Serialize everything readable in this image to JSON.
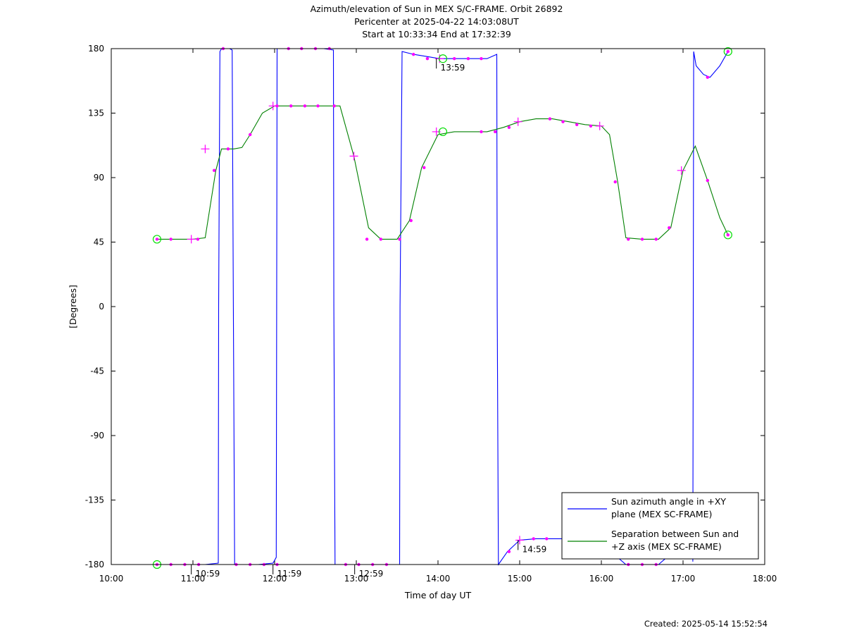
{
  "header": {
    "title": "Azimuth/elevation of Sun in MEX S/C-FRAME.  Orbit 26892",
    "pericenter": "Pericenter at 2025-04-22 14:03:08UT",
    "range": "Start at 10:33:34 End at 17:32:39"
  },
  "footer": {
    "created": "Created: 2025-05-14 15:52:54"
  },
  "chart_data": {
    "type": "line",
    "xlabel": "Time of day UT",
    "ylabel": "[Degrees]",
    "xlim": [
      10.0,
      18.0
    ],
    "ylim": [
      -180,
      180
    ],
    "x_ticks": [
      {
        "v": 10,
        "label": "10:00"
      },
      {
        "v": 11,
        "label": "11:00"
      },
      {
        "v": 12,
        "label": "12:00"
      },
      {
        "v": 13,
        "label": "13:00"
      },
      {
        "v": 14,
        "label": "14:00"
      },
      {
        "v": 15,
        "label": "15:00"
      },
      {
        "v": 16,
        "label": "16:00"
      },
      {
        "v": 17,
        "label": "17:00"
      },
      {
        "v": 18,
        "label": "18:00"
      }
    ],
    "y_ticks": [
      {
        "v": 180,
        "label": "180"
      },
      {
        "v": 135,
        "label": "135"
      },
      {
        "v": 90,
        "label": "90"
      },
      {
        "v": 45,
        "label": "45"
      },
      {
        "v": 0,
        "label": "0"
      },
      {
        "v": -45,
        "label": "-45"
      },
      {
        "v": -90,
        "label": "-90"
      },
      {
        "v": -135,
        "label": "-135"
      },
      {
        "v": -180,
        "label": "-180"
      }
    ],
    "legend_position": "bottom-right",
    "series": [
      {
        "name": "Sun azimuth angle in +XY plane (MEX SC-FRAME)",
        "legend_lines": [
          "Sun azimuth angle in +XY",
          "plane (MEX SC-FRAME)"
        ],
        "color": "#0000ff",
        "x": [
          10.56,
          10.7,
          10.98,
          11.15,
          11.31,
          11.315,
          11.33,
          11.35,
          11.45,
          11.48,
          11.495,
          11.51,
          11.6,
          11.8,
          11.98,
          12.02,
          12.025,
          12.03,
          12.2,
          12.4,
          12.6,
          12.72,
          12.725,
          12.74,
          12.9,
          13.2,
          13.47,
          13.53,
          13.535,
          13.56,
          13.7,
          14.02,
          14.2,
          14.4,
          14.6,
          14.72,
          14.725,
          14.74,
          14.85,
          15.0,
          15.2,
          15.6,
          15.68
        ],
        "y": [
          -180,
          -180,
          -180,
          -180,
          -179,
          0,
          178,
          180,
          180,
          179,
          0,
          -180,
          -180,
          -180,
          -179,
          -175,
          0,
          180,
          180,
          180,
          180,
          179,
          0,
          -180,
          -180,
          -180,
          -180,
          -180,
          0,
          178,
          176,
          173,
          173,
          173,
          173,
          176,
          0,
          -180,
          -171,
          -163,
          -162,
          -162,
          -162
        ]
      },
      {
        "name": "Sun azimuth angle in +XY plane (MEX SC-FRAME)",
        "color": "#0000ff",
        "x": [
          16.22,
          16.3,
          16.5,
          16.7,
          16.78
        ],
        "y": [
          -176,
          -180,
          -180,
          -180,
          -176
        ]
      },
      {
        "name": "Sun azimuth angle in +XY plane (MEX SC-FRAME)",
        "color": "#0000ff",
        "x": [
          17.12,
          17.125,
          17.13,
          17.16,
          17.25,
          17.33,
          17.45,
          17.55
        ],
        "y": [
          -178,
          0,
          178,
          168,
          162,
          160,
          168,
          178
        ]
      },
      {
        "name": "Separation between Sun and +Z axis (MEX SC-FRAME)",
        "legend_lines": [
          "Separation between Sun and",
          "+Z axis (MEX SC-FRAME)"
        ],
        "color": "#008000",
        "x": [
          10.56,
          10.8,
          11.0,
          11.15,
          11.28,
          11.35,
          11.5,
          11.6,
          11.7,
          11.85,
          12.0,
          12.2,
          12.4,
          12.6,
          12.8,
          12.97,
          13.15,
          13.3,
          13.5,
          13.65,
          13.8,
          14.0,
          14.2,
          14.4,
          14.6,
          14.8,
          15.0,
          15.2,
          15.4,
          15.6,
          15.8,
          16.0,
          16.1,
          16.2,
          16.3,
          16.5,
          16.7,
          16.85,
          17.0,
          17.15,
          17.3,
          17.45,
          17.55
        ],
        "y": [
          47,
          47,
          47,
          48,
          95,
          110,
          110,
          111,
          120,
          135,
          140,
          140,
          140,
          140,
          140,
          105,
          55,
          47,
          47,
          60,
          97,
          120,
          122,
          122,
          122,
          125,
          129,
          131,
          131,
          129,
          127,
          126,
          120,
          87,
          48,
          47,
          47,
          55,
          95,
          112,
          88,
          62,
          50
        ]
      }
    ],
    "markers": {
      "magenta_dots": [
        [
          10.56,
          47
        ],
        [
          10.73,
          47
        ],
        [
          11.06,
          47
        ],
        [
          11.26,
          95
        ],
        [
          11.43,
          110
        ],
        [
          11.7,
          120
        ],
        [
          12.03,
          140
        ],
        [
          12.2,
          140
        ],
        [
          12.37,
          140
        ],
        [
          12.53,
          140
        ],
        [
          12.73,
          140
        ],
        [
          13.13,
          47
        ],
        [
          13.3,
          47
        ],
        [
          13.53,
          47
        ],
        [
          13.67,
          60
        ],
        [
          13.83,
          97
        ],
        [
          14.53,
          122
        ],
        [
          14.7,
          122
        ],
        [
          14.87,
          125
        ],
        [
          15.37,
          131
        ],
        [
          15.53,
          129
        ],
        [
          15.7,
          127
        ],
        [
          15.87,
          126
        ],
        [
          16.17,
          87
        ],
        [
          16.33,
          47
        ],
        [
          16.5,
          47
        ],
        [
          16.67,
          47
        ],
        [
          16.83,
          55
        ],
        [
          17.3,
          88
        ],
        [
          17.55,
          50
        ],
        [
          10.56,
          -180
        ],
        [
          10.73,
          -180
        ],
        [
          10.9,
          -180
        ],
        [
          11.07,
          -180
        ],
        [
          11.53,
          -180
        ],
        [
          11.7,
          -180
        ],
        [
          11.87,
          -180
        ],
        [
          12.03,
          -180
        ],
        [
          12.87,
          -180
        ],
        [
          13.03,
          -180
        ],
        [
          13.2,
          -180
        ],
        [
          13.37,
          -180
        ],
        [
          11.37,
          180
        ],
        [
          12.17,
          180
        ],
        [
          12.33,
          180
        ],
        [
          12.5,
          180
        ],
        [
          12.67,
          180
        ],
        [
          13.7,
          176
        ],
        [
          13.87,
          173
        ],
        [
          14.2,
          173
        ],
        [
          14.37,
          173
        ],
        [
          14.53,
          173
        ],
        [
          14.87,
          -171
        ],
        [
          15.17,
          -162
        ],
        [
          15.33,
          -162
        ],
        [
          16.33,
          -180
        ],
        [
          16.5,
          -180
        ],
        [
          16.67,
          -180
        ],
        [
          17.3,
          160
        ],
        [
          17.55,
          178
        ]
      ],
      "plus_marks": [
        [
          10.98,
          47
        ],
        [
          11.98,
          140
        ],
        [
          12.97,
          105
        ],
        [
          13.98,
          122
        ],
        [
          14.98,
          129
        ],
        [
          15.98,
          126
        ],
        [
          16.98,
          95
        ],
        [
          11.15,
          110
        ],
        [
          14.02,
          173
        ],
        [
          15.0,
          -163
        ]
      ],
      "circles": [
        [
          10.56,
          47
        ],
        [
          10.56,
          -180
        ],
        [
          14.06,
          122
        ],
        [
          14.06,
          173
        ],
        [
          17.55,
          178
        ],
        [
          17.55,
          50
        ]
      ]
    },
    "annotations": [
      {
        "text": "10:59",
        "x": 10.98
      },
      {
        "text": "11:59",
        "x": 11.98
      },
      {
        "text": "12:59",
        "x": 12.98
      },
      {
        "text": "13:59",
        "x": 13.98,
        "y": 173
      },
      {
        "text": "14:59",
        "x": 14.98,
        "y": -163
      }
    ]
  }
}
